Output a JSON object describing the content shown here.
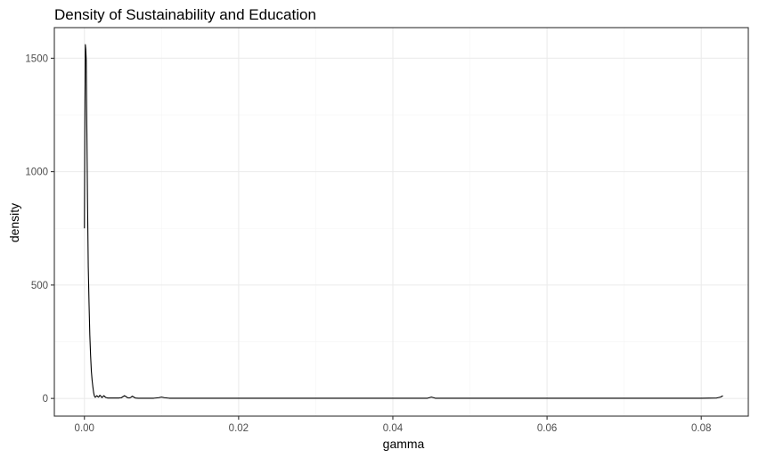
{
  "chart_data": {
    "type": "line",
    "title": "Density of Sustainability and Education",
    "xlabel": "gamma",
    "ylabel": "density",
    "xlim": [
      -0.0039,
      0.0861
    ],
    "ylim": [
      -78,
      1635
    ],
    "x_ticks": [
      0.0,
      0.02,
      0.04,
      0.06,
      0.08
    ],
    "x_tick_labels": [
      "0.00",
      "0.02",
      "0.04",
      "0.06",
      "0.08"
    ],
    "y_ticks": [
      0,
      500,
      1000,
      1500
    ],
    "y_tick_labels": [
      "0",
      "500",
      "1000",
      "1500"
    ],
    "grid": true,
    "legend": "none",
    "colors": {
      "line": "#000000",
      "panel_border": "#333333",
      "grid_major": "#ebebeb",
      "grid_minor": "#f5f5f5"
    },
    "series": [
      {
        "x": [
          0.0,
          5e-05,
          0.00012,
          0.00018,
          0.00024,
          0.0003,
          0.0004,
          0.0005,
          0.0006,
          0.0007,
          0.0008,
          0.0009,
          0.001,
          0.0011,
          0.0012,
          0.0013,
          0.0014,
          0.0015,
          0.0016,
          0.0017,
          0.0018,
          0.0019,
          0.002,
          0.0021,
          0.0022,
          0.0023,
          0.0024,
          0.0025,
          0.0026,
          0.0027,
          0.0028,
          0.0029,
          0.003,
          0.0031,
          0.0032,
          0.0034,
          0.0036,
          0.004,
          0.0045,
          0.0048,
          0.005,
          0.0052,
          0.0054,
          0.0056,
          0.0058,
          0.006,
          0.0062,
          0.0064,
          0.0066,
          0.007,
          0.008,
          0.009,
          0.0096,
          0.01,
          0.0104,
          0.011,
          0.02,
          0.03,
          0.04,
          0.0445,
          0.045,
          0.0455,
          0.05,
          0.06,
          0.07,
          0.08,
          0.082,
          0.0825,
          0.0828
        ],
        "y": [
          750,
          1150,
          1560,
          1540,
          1490,
          1250,
          880,
          580,
          420,
          280,
          190,
          120,
          80,
          50,
          25,
          10,
          5,
          8,
          12,
          10,
          6,
          8,
          14,
          12,
          6,
          4,
          8,
          12,
          10,
          6,
          4,
          3,
          2,
          2,
          2,
          2,
          2,
          2,
          2,
          3,
          8,
          12,
          8,
          3,
          2,
          4,
          10,
          6,
          2,
          1,
          1,
          1,
          3,
          6,
          3,
          1,
          1,
          1,
          1,
          1,
          6,
          1,
          1,
          1,
          1,
          1,
          2,
          6,
          12
        ]
      }
    ]
  }
}
